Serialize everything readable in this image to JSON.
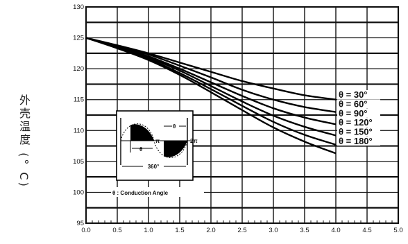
{
  "chart_data": {
    "type": "line",
    "title": "",
    "xlabel": "",
    "ylabel": "外壳温度 (° C)",
    "xlim": [
      0,
      5.0
    ],
    "ylim": [
      95,
      130
    ],
    "x_ticks": [
      "0.0",
      "0.5",
      "1.0",
      "1.5",
      "2.0",
      "2.5",
      "3.0",
      "3.5",
      "4.0",
      "4.5",
      "5.0"
    ],
    "y_ticks": [
      "95",
      "100",
      "105",
      "110",
      "115",
      "120",
      "125",
      "130"
    ],
    "grid": true,
    "legend_placement": "inline-right",
    "series": [
      {
        "name": "θ = 30°",
        "x": [
          0.0,
          0.5,
          1.0,
          1.5,
          2.0,
          2.5,
          3.0,
          3.5,
          4.0
        ],
        "values": [
          125.0,
          123.8,
          122.5,
          121.0,
          119.5,
          118.0,
          116.8,
          115.7,
          115.0
        ]
      },
      {
        "name": "θ = 60°",
        "x": [
          0.0,
          0.5,
          1.0,
          1.5,
          2.0,
          2.5,
          3.0,
          3.5,
          4.0
        ],
        "values": [
          125.0,
          123.7,
          122.3,
          120.5,
          118.6,
          116.6,
          115.0,
          113.8,
          113.0
        ]
      },
      {
        "name": "θ = 90°",
        "x": [
          0.0,
          0.5,
          1.0,
          1.5,
          2.0,
          2.5,
          3.0,
          3.5,
          4.0
        ],
        "values": [
          125.0,
          123.6,
          122.0,
          120.0,
          117.8,
          115.6,
          113.6,
          112.1,
          111.0
        ]
      },
      {
        "name": "θ = 120°",
        "x": [
          0.0,
          0.5,
          1.0,
          1.5,
          2.0,
          2.5,
          3.0,
          3.5,
          4.0
        ],
        "values": [
          125.0,
          123.5,
          121.8,
          119.7,
          117.2,
          114.7,
          112.4,
          110.6,
          109.2
        ]
      },
      {
        "name": "θ = 150°",
        "x": [
          0.0,
          0.5,
          1.0,
          1.5,
          2.0,
          2.5,
          3.0,
          3.5,
          4.0
        ],
        "values": [
          125.0,
          123.4,
          121.6,
          119.3,
          116.7,
          114.0,
          111.4,
          109.3,
          107.7
        ]
      },
      {
        "name": "θ = 180°",
        "x": [
          0.0,
          0.5,
          1.0,
          1.5,
          2.0,
          2.5,
          3.0,
          3.5,
          4.0
        ],
        "values": [
          125.0,
          123.3,
          121.4,
          119.0,
          116.2,
          113.3,
          110.5,
          108.2,
          106.3
        ]
      }
    ],
    "inset": {
      "caption": "θ : Conduction Angle",
      "theta_symbol": "θ",
      "period_label": "360°",
      "pi_label": "π",
      "two_pi_label": "2π"
    }
  },
  "colors": {
    "grid": "#111111",
    "curve": "#000000",
    "background": "#ffffff"
  }
}
